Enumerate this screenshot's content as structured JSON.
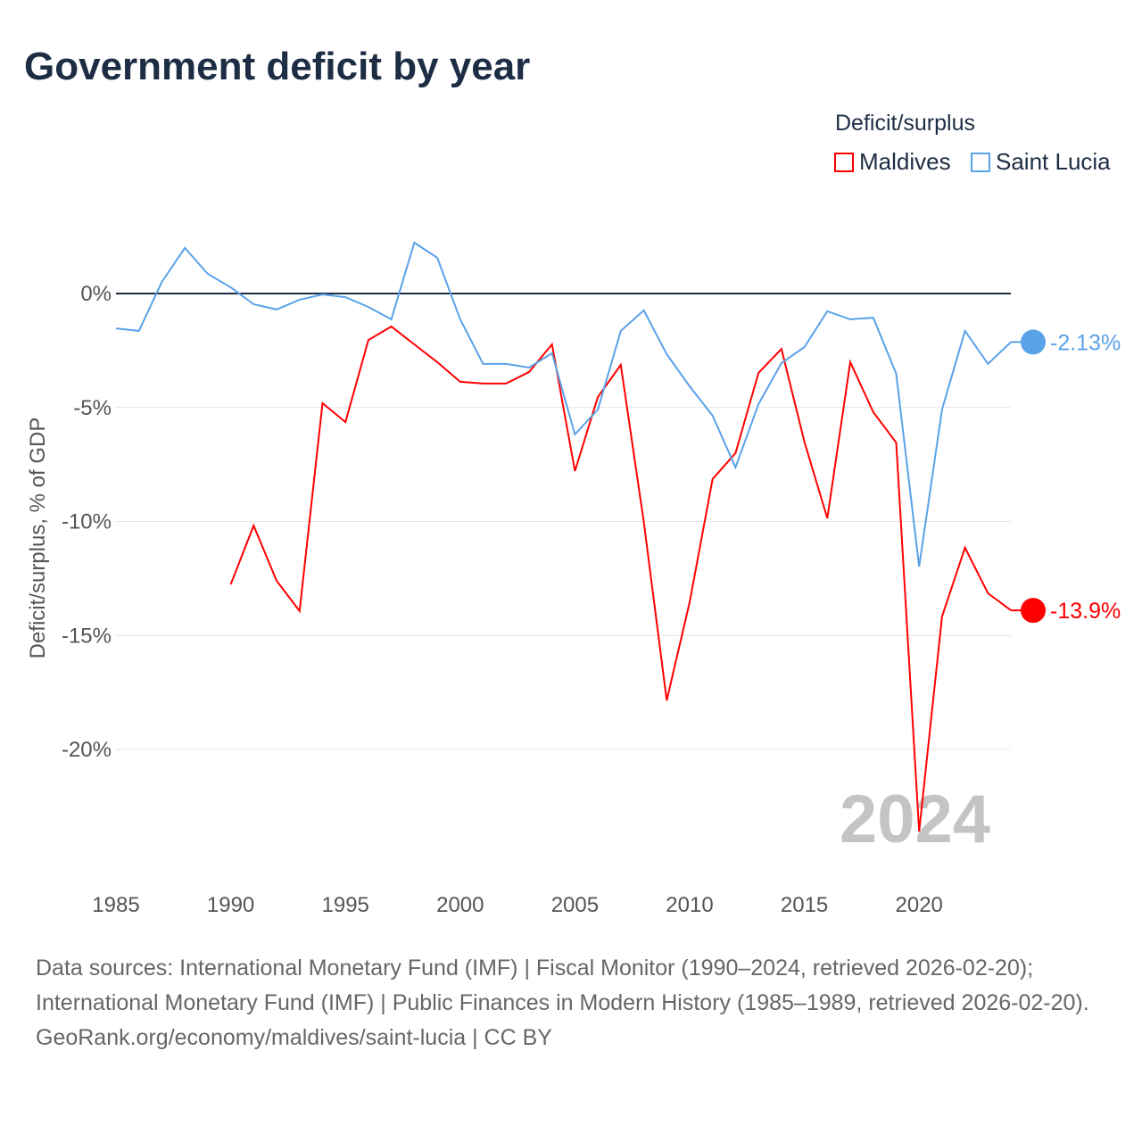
{
  "title": "Government deficit by year",
  "chart_data": {
    "type": "line",
    "title": "Government deficit by year",
    "ylabel": "Deficit/surplus, % of GDP",
    "xlabel": "",
    "legend_title": "Deficit/surplus",
    "legend_position": "top-right",
    "ylim": [
      -25,
      3
    ],
    "xlim": [
      1985,
      2024
    ],
    "yticks": [
      0,
      -5,
      -10,
      -15,
      -20
    ],
    "ytick_labels": [
      "0%",
      "-5%",
      "-10%",
      "-15%",
      "-20%"
    ],
    "xticks": [
      1985,
      1990,
      1995,
      2000,
      2005,
      2010,
      2015,
      2020
    ],
    "xtick_labels": [
      "1985",
      "1990",
      "1995",
      "2000",
      "2005",
      "2010",
      "2015",
      "2020"
    ],
    "year_watermark": "2024",
    "series": [
      {
        "name": "Maldives",
        "color": "#ff0000",
        "end_label": "-13.9%",
        "start": 1990,
        "values": [
          -12.76,
          -10.18,
          -12.6,
          -13.93,
          -4.81,
          -5.64,
          -2.04,
          -1.45,
          -2.23,
          -3.01,
          -3.87,
          -3.95,
          -3.95,
          -3.44,
          -2.23,
          -7.79,
          -4.54,
          -3.13,
          -10.02,
          -17.85,
          -13.54,
          -8.14,
          -7.0,
          -3.48,
          -2.43,
          -6.5,
          -9.86,
          -3.01,
          -5.2,
          -6.54,
          -23.6,
          -14.17,
          -11.15,
          -13.15,
          -13.9
        ]
      },
      {
        "name": "Saint Lucia",
        "color": "#5aa2e8",
        "end_label": "-2.13%",
        "start": 1985,
        "values": [
          -1.53,
          -1.64,
          0.51,
          2.0,
          0.86,
          0.27,
          -0.47,
          -0.7,
          -0.27,
          -0.04,
          -0.16,
          -0.59,
          -1.13,
          2.23,
          1.57,
          -1.13,
          -3.09,
          -3.09,
          -3.25,
          -2.62,
          -6.18,
          -5.09,
          -1.64,
          -0.74,
          -2.66,
          -4.07,
          -5.36,
          -7.63,
          -4.85,
          -3.05,
          -2.35,
          -0.78,
          -1.13,
          -1.06,
          -3.52,
          -11.98,
          -5.09,
          -1.64,
          -3.09,
          -2.13
        ]
      }
    ]
  },
  "footer": {
    "sources": "Data sources: International Monetary Fund (IMF) | Fiscal Monitor (1990–2024, retrieved 2026-02-20); International Monetary Fund (IMF) | Public Finances in Modern History (1985–1989, retrieved 2026-02-20).",
    "credit": "GeoRank.org/economy/maldives/saint-lucia | CC BY"
  }
}
